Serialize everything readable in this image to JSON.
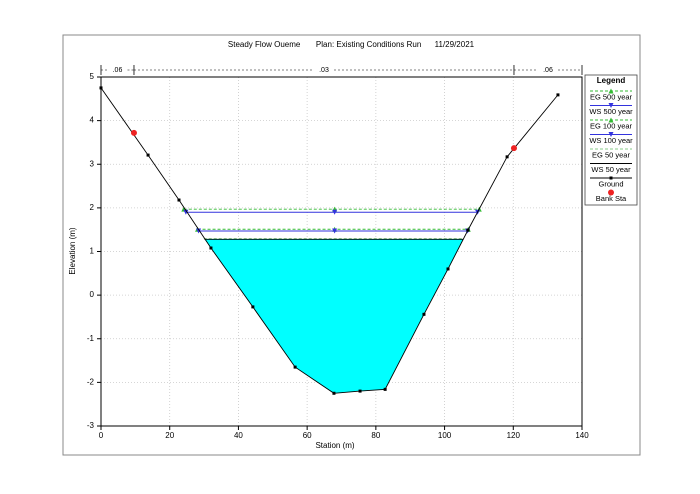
{
  "chart_data": {
    "type": "line",
    "title": "Steady Flow Oueme       Plan: Existing Conditions Run      11/29/2021",
    "x_label": "Station (m)",
    "y_label": "Elevation (m)",
    "xlim": [
      0,
      140
    ],
    "ylim": [
      -3,
      5
    ],
    "xticks": [
      0,
      20,
      40,
      60,
      80,
      100,
      120,
      140
    ],
    "yticks": [
      -3,
      -2,
      -1,
      0,
      1,
      2,
      3,
      4,
      5
    ],
    "grid": true,
    "legend_title": "Legend",
    "manning_n": [
      ".06",
      ".03",
      ".06"
    ],
    "series": [
      {
        "name": "EG 500 year",
        "color": "#33bb33",
        "dash": true,
        "marker": "triangle",
        "x": [
          24.1,
          68,
          110.1
        ],
        "values": [
          1.97,
          1.97,
          1.97
        ]
      },
      {
        "name": "WS 500 year",
        "color": "#3333dd",
        "dash": false,
        "marker": "triangle-down",
        "x": [
          24.7,
          68,
          109.6
        ],
        "values": [
          1.9,
          1.9,
          1.9
        ]
      },
      {
        "name": "EG 100 year",
        "color": "#33bb33",
        "dash": true,
        "marker": "triangle",
        "x": [
          28.1,
          68,
          106.9
        ],
        "values": [
          1.51,
          1.51,
          1.51
        ]
      },
      {
        "name": "WS 100 year",
        "color": "#3333dd",
        "dash": false,
        "marker": "triangle-down",
        "x": [
          28.4,
          68,
          106.7
        ],
        "values": [
          1.47,
          1.47,
          1.47
        ]
      },
      {
        "name": "EG 50 year",
        "color": "#88cc88",
        "dash": true,
        "marker": "none",
        "x": [
          29.9,
          105.5
        ],
        "values": [
          1.3,
          1.3
        ]
      },
      {
        "name": "WS 50 year",
        "color": "#000000",
        "dash": false,
        "marker": "none",
        "fill": "#00ffff",
        "x": [
          30.1,
          105.4
        ],
        "values": [
          1.28,
          1.28
        ]
      },
      {
        "name": "Ground",
        "color": "#000000",
        "dash": false,
        "marker": "square",
        "x": [
          0,
          13.7,
          22.7,
          32,
          44.2,
          56.5,
          67.8,
          75.4,
          82.7,
          94,
          101,
          106.8,
          118.2,
          133
        ],
        "values": [
          4.75,
          3.21,
          2.18,
          1.08,
          -0.27,
          -1.65,
          -2.25,
          -2.2,
          -2.16,
          -0.44,
          0.6,
          1.49,
          3.17,
          4.59
        ]
      },
      {
        "name": "Bank Sta",
        "color": "#ee2222",
        "dash": false,
        "marker": "circle",
        "line": false,
        "x": [
          9.6,
          120.2
        ],
        "values": [
          3.72,
          3.37
        ]
      }
    ]
  }
}
